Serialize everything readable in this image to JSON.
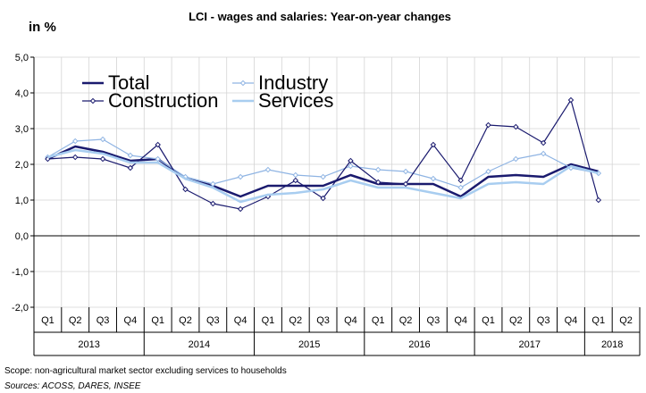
{
  "chart_data": {
    "type": "line",
    "title": "LCI - wages and salaries: Year-on-year changes",
    "ylabel": "in %",
    "ylim": [
      -2,
      5
    ],
    "y_ticks": [
      "-2,0",
      "-1,0",
      "0,0",
      "1,0",
      "2,0",
      "3,0",
      "4,0",
      "5,0"
    ],
    "grid": true,
    "legend_position": "top-left",
    "quarters": [
      "Q1",
      "Q2",
      "Q3",
      "Q4",
      "Q1",
      "Q2",
      "Q3",
      "Q4",
      "Q1",
      "Q2",
      "Q3",
      "Q4",
      "Q1",
      "Q2",
      "Q3",
      "Q4",
      "Q1",
      "Q2",
      "Q3",
      "Q4",
      "Q1",
      "Q2"
    ],
    "years": [
      {
        "label": "2013",
        "quarters": 4
      },
      {
        "label": "2014",
        "quarters": 4
      },
      {
        "label": "2015",
        "quarters": 4
      },
      {
        "label": "2016",
        "quarters": 4
      },
      {
        "label": "2017",
        "quarters": 4
      },
      {
        "label": "2018",
        "quarters": 2
      }
    ],
    "series": [
      {
        "name": "Total",
        "color": "#1a1a6e",
        "width": 2.5,
        "marker": false,
        "values": [
          2.15,
          2.5,
          2.35,
          2.1,
          2.15,
          1.6,
          1.4,
          1.1,
          1.4,
          1.4,
          1.4,
          1.7,
          1.45,
          1.45,
          1.45,
          1.1,
          1.65,
          1.7,
          1.65,
          2.0,
          1.8,
          null
        ]
      },
      {
        "name": "Industry",
        "color": "#8fb4e3",
        "width": 1.2,
        "marker": true,
        "values": [
          2.2,
          2.65,
          2.7,
          2.25,
          2.15,
          1.65,
          1.45,
          1.65,
          1.85,
          1.7,
          1.65,
          1.95,
          1.85,
          1.8,
          1.6,
          1.35,
          1.8,
          2.15,
          2.3,
          1.9,
          1.75,
          null
        ]
      },
      {
        "name": "Construction",
        "color": "#1a1a6e",
        "width": 1.2,
        "marker": true,
        "values": [
          2.15,
          2.2,
          2.15,
          1.9,
          2.55,
          1.3,
          0.9,
          0.75,
          1.1,
          1.55,
          1.05,
          2.1,
          1.5,
          1.45,
          2.55,
          1.55,
          3.1,
          3.05,
          2.6,
          3.8,
          1.0,
          null
        ]
      },
      {
        "name": "Services",
        "color": "#a8cdf0",
        "width": 2.5,
        "marker": false,
        "values": [
          2.2,
          2.4,
          2.3,
          2.05,
          2.05,
          1.6,
          1.35,
          0.95,
          1.15,
          1.2,
          1.3,
          1.55,
          1.35,
          1.35,
          1.2,
          1.05,
          1.45,
          1.5,
          1.45,
          1.95,
          1.75,
          null
        ]
      }
    ]
  },
  "notes": {
    "scope": "Scope: non-agricultural market sector excluding services to households",
    "sources": "Sources: ACOSS, DARES, INSEE"
  }
}
